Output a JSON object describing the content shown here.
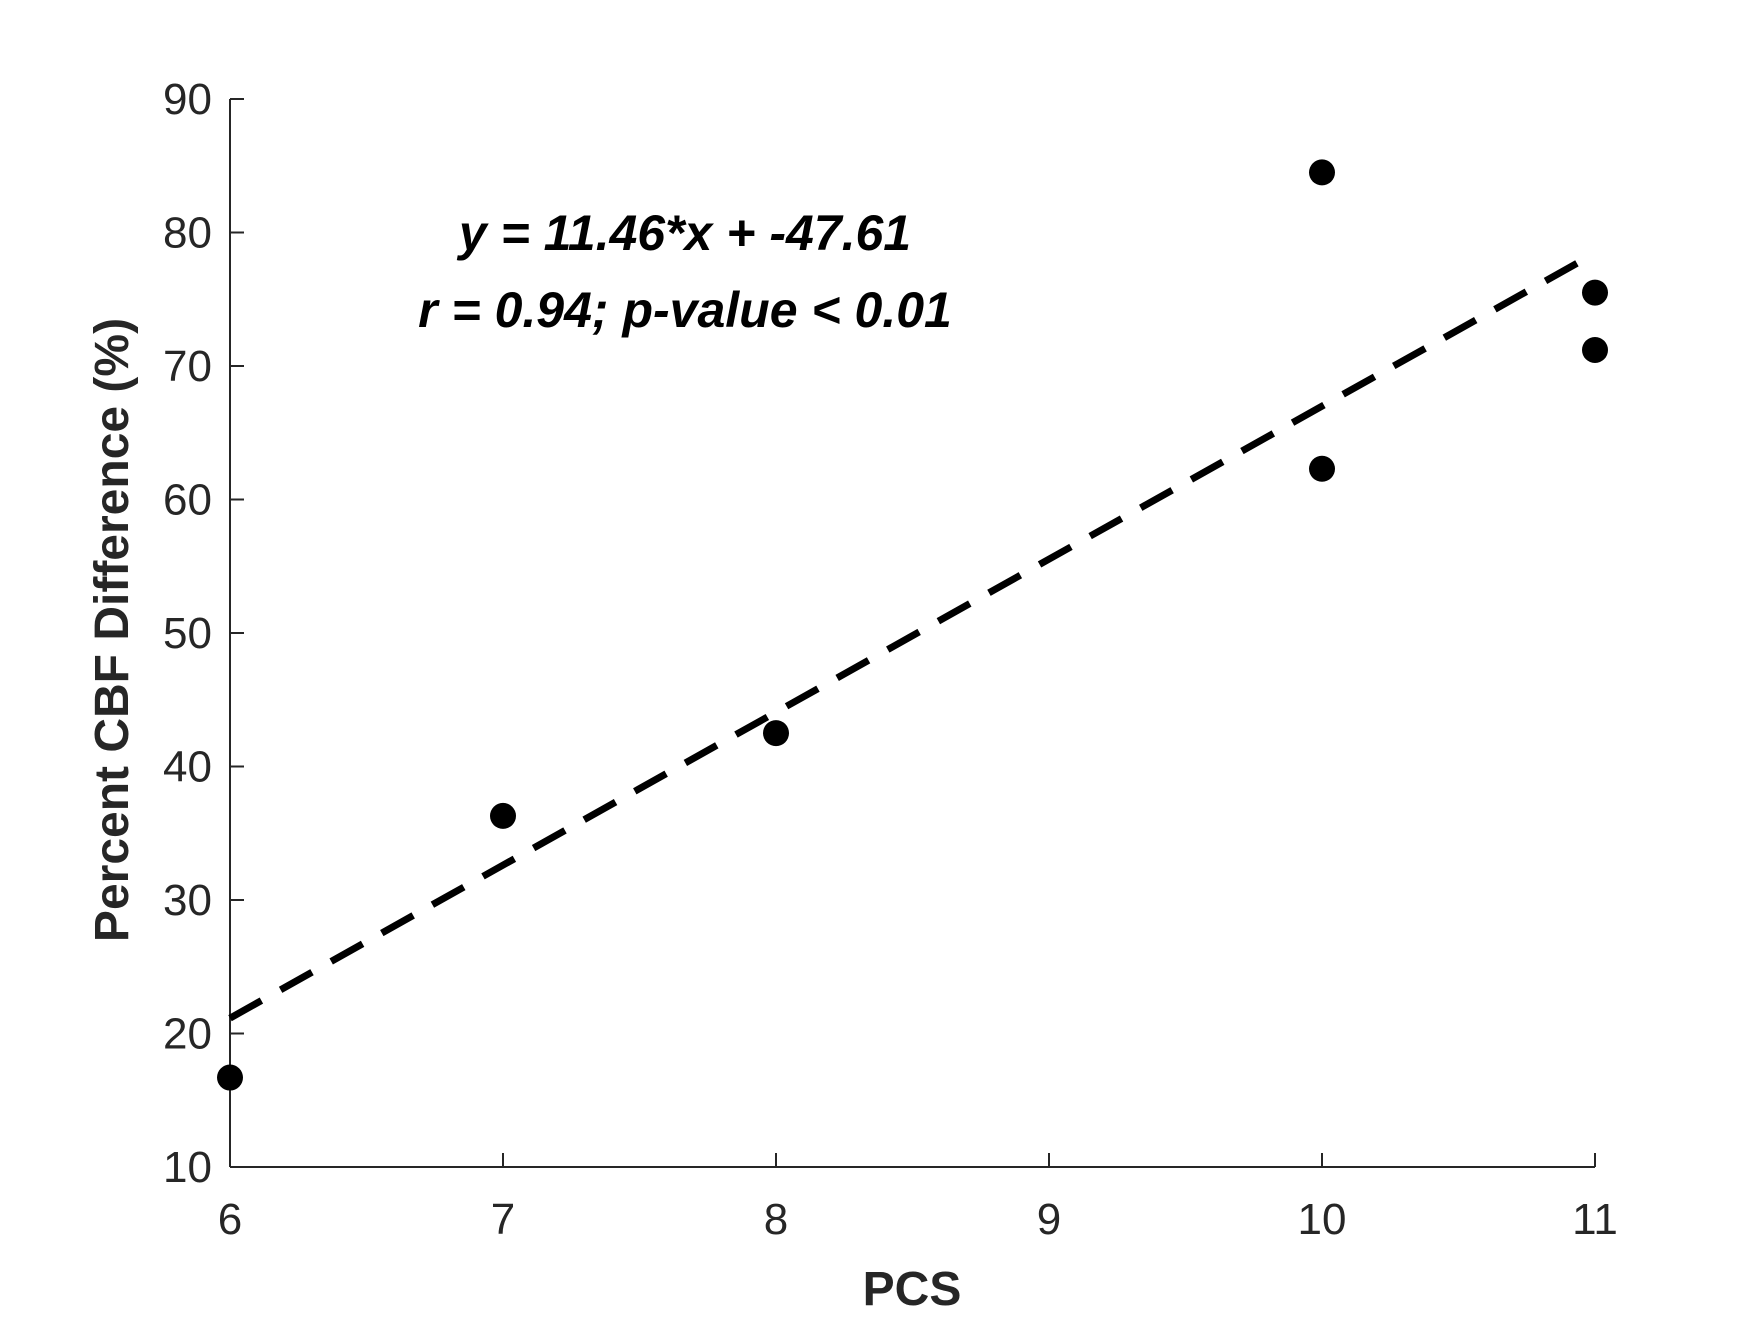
{
  "chart_data": {
    "type": "scatter",
    "title": "",
    "xlabel": "PCS",
    "ylabel": "Percent CBF Difference (%)",
    "xlim": [
      6,
      11
    ],
    "ylim": [
      10,
      90
    ],
    "x_ticks": [
      6,
      7,
      8,
      9,
      10,
      11
    ],
    "x_tick_labels": [
      "6",
      "7",
      "8",
      "9",
      "10",
      "11"
    ],
    "y_ticks": [
      10,
      20,
      30,
      40,
      50,
      60,
      70,
      80,
      90
    ],
    "y_tick_labels": [
      "10",
      "20",
      "30",
      "40",
      "50",
      "60",
      "70",
      "80",
      "90"
    ],
    "grid": false,
    "series": [
      {
        "points": [
          {
            "x": 6,
            "y": 16.7
          },
          {
            "x": 7,
            "y": 36.3
          },
          {
            "x": 8,
            "y": 42.5
          },
          {
            "x": 10,
            "y": 84.5
          },
          {
            "x": 10,
            "y": 62.3
          },
          {
            "x": 11,
            "y": 75.5
          },
          {
            "x": 11,
            "y": 71.2
          }
        ],
        "color": "#000000",
        "marker": "filled-circle"
      }
    ],
    "fit_line": {
      "slope": 11.46,
      "intercept": -47.61,
      "x_range": [
        6,
        11
      ],
      "style": "dashed",
      "color": "#000000"
    },
    "annotations": [
      "y = 11.46*x + -47.61",
      "r = 0.94; p-value < 0.01"
    ]
  }
}
